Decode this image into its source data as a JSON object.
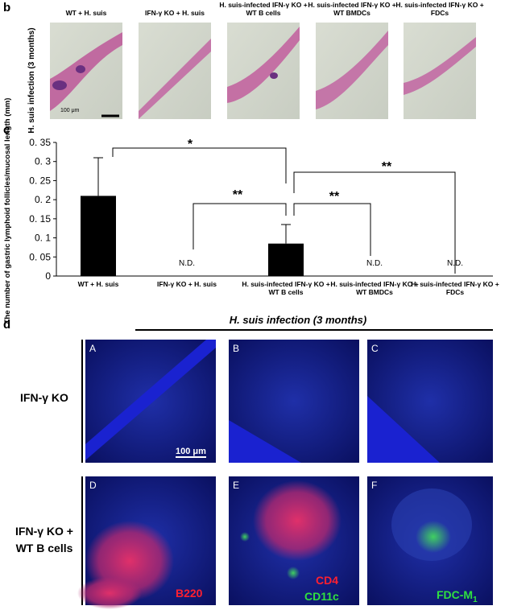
{
  "panel_b": {
    "label": "b",
    "row_label": "H. suis infection (3 months)",
    "columns": [
      "WT + H. suis",
      "IFN-γ KO + H. suis",
      "H. suis-infected IFN-γ KO + WT B cells",
      "H. suis-infected IFN-γ KO + WT BMDCs",
      "H. suis-infected IFN-γ KO + FDCs"
    ],
    "scale_bar": "100 μm"
  },
  "chart_data": {
    "type": "bar",
    "panel_label": "c",
    "ylabel": "The number of gastric lymphoid follicles/mucosal length (mm)",
    "categories": [
      "WT + H. suis",
      "IFN-γ KO + H. suis",
      "H. suis-infected IFN-γ KO + WT B cells",
      "H. suis-infected IFN-γ KO + WT BMDCs",
      "H. suis-infected IFN-γ KO + FDCs"
    ],
    "values": [
      0.21,
      null,
      0.085,
      null,
      null
    ],
    "errors": [
      0.1,
      null,
      0.05,
      null,
      null
    ],
    "value_labels": [
      null,
      "N.D.",
      null,
      "N.D.",
      "N.D."
    ],
    "color": "#000000",
    "ylim": [
      0,
      0.35
    ],
    "yticks": [
      0,
      {
        "value": 0.05,
        "label": "0. 05"
      },
      {
        "value": 0.1,
        "label": "0. 1"
      },
      {
        "value": 0.15,
        "label": "0. 15"
      },
      {
        "value": 0.2,
        "label": "0. 2"
      },
      {
        "value": 0.25,
        "label": "0. 25"
      },
      {
        "value": 0.3,
        "label": "0. 3"
      },
      {
        "value": 0.35,
        "label": "0. 35"
      }
    ],
    "annotations": [
      "*",
      "**",
      "**",
      "**"
    ]
  },
  "panel_d": {
    "label": "d",
    "title": "H. suis infection (3 months)",
    "rows": [
      "IFN-γ KO",
      "IFN-γ KO + WT B cells"
    ],
    "panels": [
      "A",
      "B",
      "C",
      "D",
      "E",
      "F"
    ],
    "scale_bar": "100 μm",
    "stain_d": "B220",
    "stain_e": [
      "CD4",
      "CD11c"
    ],
    "stain_f": {
      "text": "FDC-M",
      "sub": "1"
    }
  }
}
